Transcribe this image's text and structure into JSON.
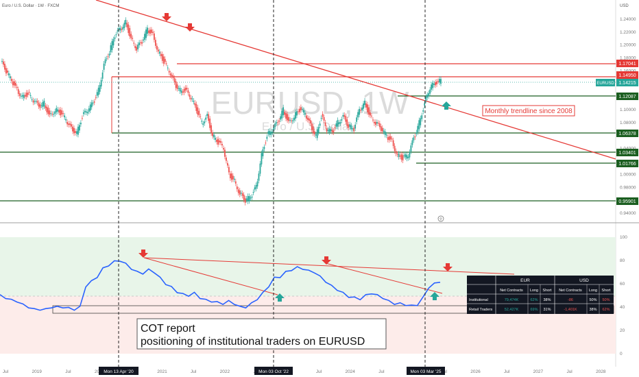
{
  "header": {
    "title": "Euro / U.S. Dollar · 1W · FXCM",
    "currency": "USD"
  },
  "watermark": {
    "symbol": "EURUSD, 1W",
    "name": "Euro / U.S. Dollar"
  },
  "annotations": {
    "trendline_label": "Monthly trendline since 2008",
    "cot_label_line1": "COT report",
    "cot_label_line2": "positioning of institutional traders on EURUSD"
  },
  "colors": {
    "candle_up": "#26a69a",
    "candle_down": "#ef5350",
    "trendline": "#e53935",
    "support": "#1b5e20",
    "cot_line": "#2962ff",
    "arrow_down": "#e53935",
    "arrow_up": "#26a69a",
    "cot_upper_zone": "#e8f5e9",
    "cot_lower_zone": "#fdecea"
  },
  "chart_data": [
    {
      "type": "line",
      "title": "EURUSD, 1W",
      "ylim": [
        0.93,
        1.25
      ],
      "y_ticks": [
        "1.24000",
        "1.22000",
        "1.20000",
        "1.18000",
        "1.16000",
        "1.14000",
        "1.12000",
        "1.10000",
        "1.08000",
        "1.06000",
        "1.04000",
        "1.02000",
        "1.00000",
        "0.98000",
        "0.96000",
        "0.94000"
      ],
      "x_tick_labels": [
        "Jul",
        "2019",
        "Jul",
        "2020",
        "Jul",
        "2021",
        "Jul",
        "2022",
        "Jul",
        "2023",
        "Jul",
        "2024",
        "Jul",
        "2025",
        "Jul",
        "2026",
        "Jul",
        "2027",
        "Jul",
        "2028"
      ],
      "series": [
        {
          "values": [
            1.175,
            1.16,
            1.145,
            1.13,
            1.12,
            1.125,
            1.115,
            1.105,
            1.11,
            1.09,
            1.1,
            1.095,
            1.085,
            1.07,
            1.065,
            1.09,
            1.1,
            1.11,
            1.13,
            1.17,
            1.19,
            1.215,
            1.225,
            1.235,
            1.21,
            1.195,
            1.205,
            1.225,
            1.215,
            1.19,
            1.175,
            1.16,
            1.14,
            1.13,
            1.13,
            1.12,
            1.1,
            1.08,
            1.09,
            1.06,
            1.05,
            1.04,
            1.0,
            0.99,
            0.97,
            0.96,
            0.965,
            0.98,
            1.03,
            1.06,
            1.07,
            1.08,
            1.1,
            1.08,
            1.09,
            1.1,
            1.095,
            1.075,
            1.06,
            1.09,
            1.07,
            1.065,
            1.08,
            1.09,
            1.075,
            1.07,
            1.1,
            1.11,
            1.09,
            1.08,
            1.07,
            1.06,
            1.05,
            1.03,
            1.025,
            1.03,
            1.055,
            1.08,
            1.11,
            1.135,
            1.14,
            1.145
          ]
        }
      ],
      "price_labels": [
        {
          "value": "1.17041",
          "kind": "resistance"
        },
        {
          "value": "1.14950",
          "kind": "resistance"
        },
        {
          "value": "1.14215",
          "kind": "current",
          "tag": "EURUSD"
        },
        {
          "value": "1.12087",
          "kind": "support"
        },
        {
          "value": "1.06378",
          "kind": "support"
        },
        {
          "value": "1.03401",
          "kind": "support"
        },
        {
          "value": "1.01766",
          "kind": "support"
        },
        {
          "value": "0.95901",
          "kind": "support"
        }
      ],
      "markers": [
        {
          "label": "Mon 13 Apr '20"
        },
        {
          "label": "Mon 03 Oct '22"
        },
        {
          "label": "Mon 03 Mar '25"
        }
      ]
    },
    {
      "type": "line",
      "title": "",
      "ylim": [
        0,
        100
      ],
      "y_ticks": [
        "100",
        "80",
        "60",
        "40",
        "20",
        "0"
      ],
      "series": [
        {
          "values": [
            50,
            48,
            46,
            45,
            42,
            40,
            38,
            38,
            38,
            40,
            40,
            40,
            39,
            38,
            40,
            58,
            62,
            66,
            73,
            76,
            79,
            80,
            77,
            73,
            70,
            69,
            72,
            70,
            65,
            60,
            57,
            53,
            51,
            50,
            52,
            48,
            46,
            45,
            44,
            43,
            45,
            43,
            40,
            40,
            43,
            47,
            52,
            58,
            65,
            66,
            70,
            72,
            74,
            73,
            71,
            70,
            66,
            62,
            58,
            55,
            52,
            49,
            48,
            47,
            50,
            52,
            50,
            48,
            45,
            43,
            43,
            42,
            41,
            42,
            48,
            57,
            60,
            62
          ]
        }
      ]
    }
  ],
  "cot_table": {
    "groups": [
      "EUR",
      "USD"
    ],
    "columns": [
      "Net Contracts",
      "Long",
      "Short",
      "Net Contracts",
      "Long",
      "Short"
    ],
    "rows": [
      {
        "label": "Institutional",
        "cells": [
          "79,474K",
          "62%",
          "38%",
          "-86",
          "50%",
          "50%"
        ]
      },
      {
        "label": "Retail Traders",
        "cells": [
          "52,427K",
          "69%",
          "31%",
          "-1,401K",
          "38%",
          "62%"
        ]
      }
    ]
  }
}
